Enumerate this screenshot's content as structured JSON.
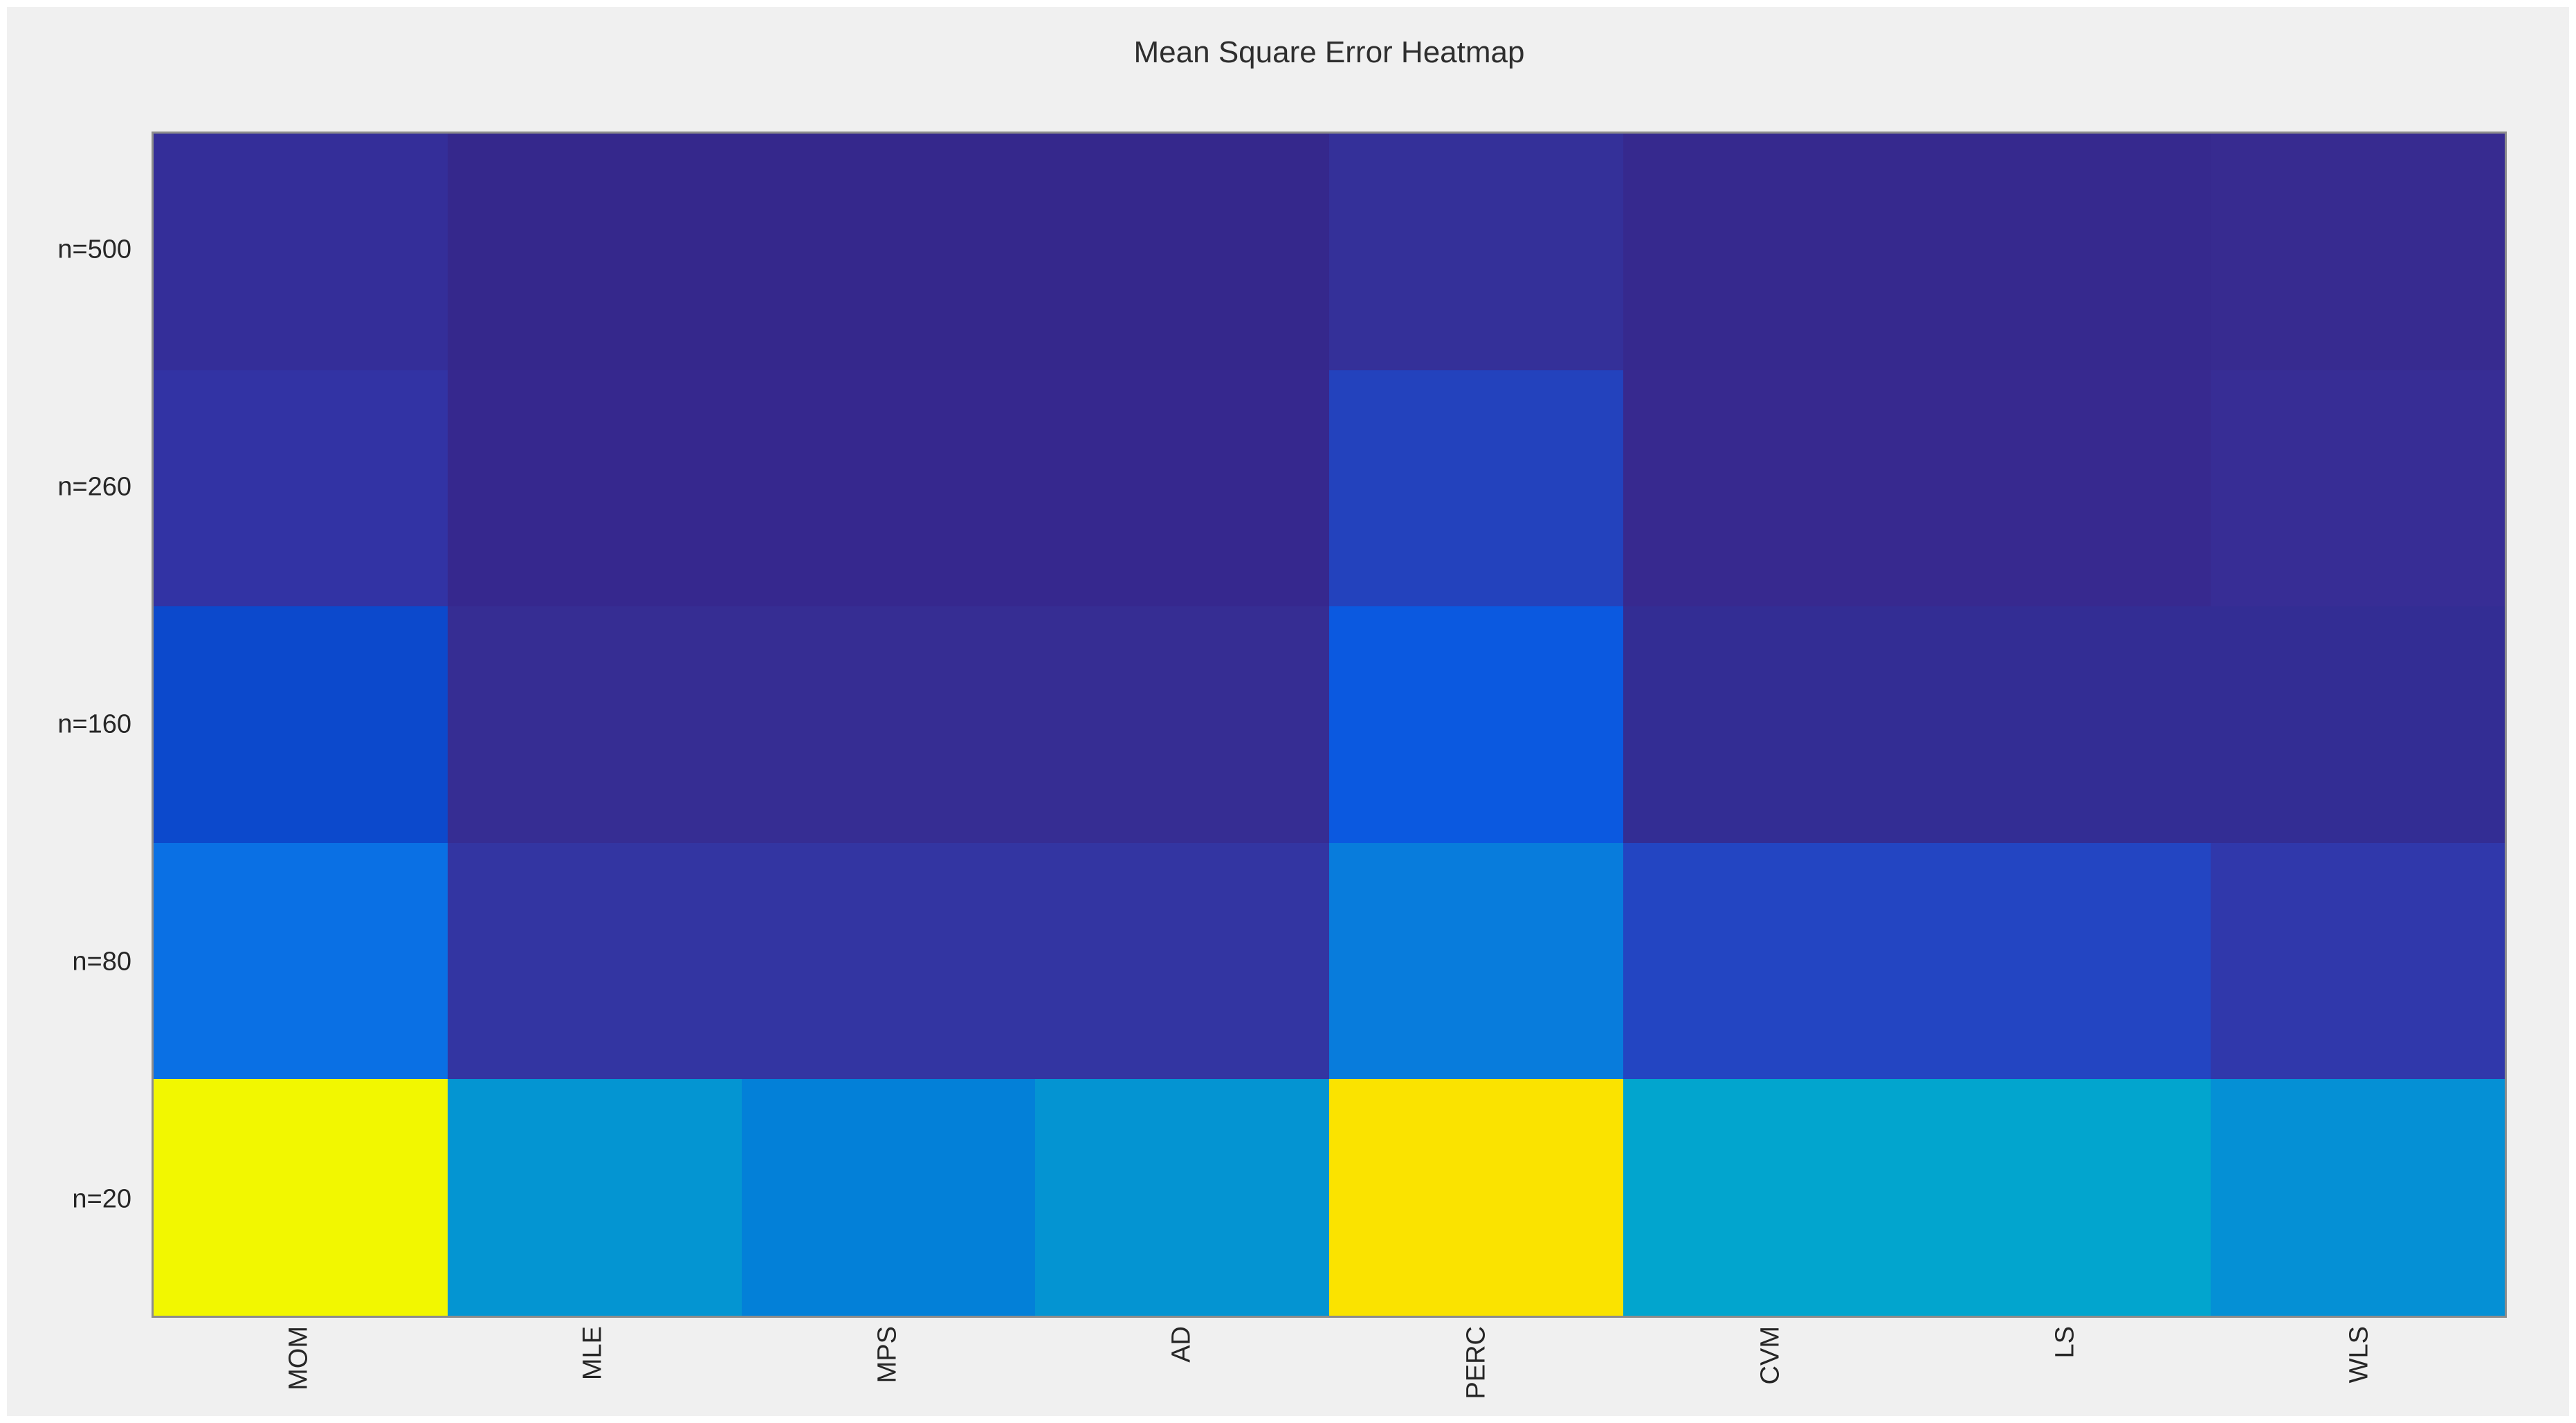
{
  "figure": {
    "background_color": "#f0f0f0",
    "page_frame_color": "#ffffff",
    "axis_border_color": "#8c8c8c",
    "text_color": "#262626"
  },
  "chart_data": {
    "type": "heatmap",
    "title": "Mean Square Error Heatmap",
    "x_categories": [
      "MOM",
      "MLE",
      "MPS",
      "AD",
      "PERC",
      "CVM",
      "LS",
      "WLS"
    ],
    "y_categories": [
      "n=500",
      "n=260",
      "n=160",
      "n=80",
      "n=20"
    ],
    "x_tick_rotation_degrees": 90,
    "colormap": "parula",
    "colorbar": "none",
    "legend": "none",
    "grid": "off",
    "cell_colors": [
      [
        "#342e99",
        "#35288c",
        "#35288c",
        "#35288c",
        "#343099",
        "#36298e",
        "#36298e",
        "#372b90"
      ],
      [
        "#3233a4",
        "#36288e",
        "#36288e",
        "#36288e",
        "#2342bd",
        "#37298f",
        "#37298f",
        "#372d95"
      ],
      [
        "#0c49cc",
        "#362d93",
        "#362d93",
        "#362d93",
        "#0b59e0",
        "#332d94",
        "#332d94",
        "#332d94"
      ],
      [
        "#0a70e4",
        "#3335a2",
        "#3335a2",
        "#3335a2",
        "#087cdc",
        "#2345c2",
        "#2345c2",
        "#3038ab"
      ],
      [
        "#f2f700",
        "#0495d2",
        "#0380d8",
        "#0494d2",
        "#fae300",
        "#02a5ce",
        "#02a5ce",
        "#0590d5"
      ]
    ]
  }
}
